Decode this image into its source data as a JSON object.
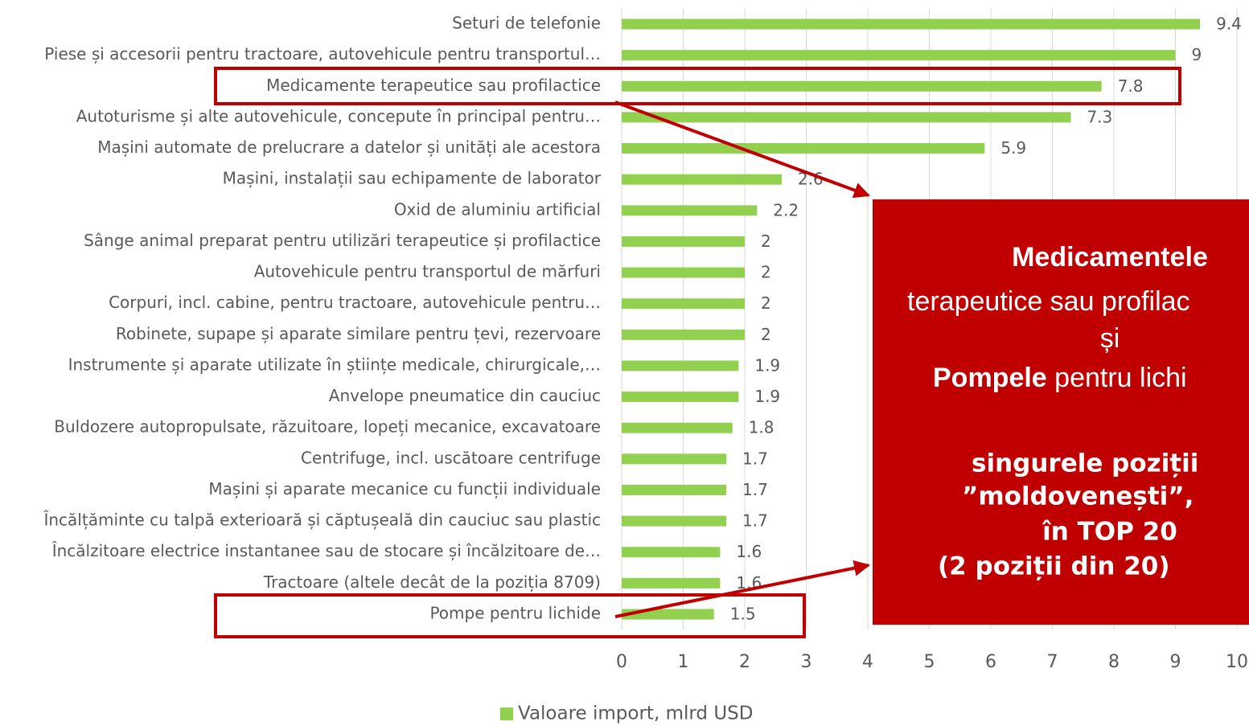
{
  "chart_data": {
    "type": "bar",
    "orientation": "horizontal",
    "categories": [
      "Seturi de telefonie",
      "Piese și accesorii pentru tractoare, autovehicule pentru transportul…",
      "Medicamente terapeutice sau profilactice",
      "Autoturisme și alte autovehicule, concepute în principal pentru…",
      "Mașini automate de prelucrare a datelor și unități ale acestora",
      "Mașini, instalații sau echipamente de laborator",
      "Oxid de aluminiu artificial",
      "Sânge animal preparat pentru utilizări terapeutice și profilactice",
      "Autovehicule pentru transportul de mărfuri",
      "Corpuri, incl. cabine, pentru tractoare, autovehicule pentru…",
      "Robinete, supape și aparate similare pentru țevi, rezervoare",
      "Instrumente și aparate utilizate în științe medicale, chirurgicale,…",
      "Anvelope pneumatice din cauciuc",
      "Buldozere autopropulsate, răzuitoare, lopeți mecanice, excavatoare",
      "Centrifuge, incl. uscătoare centrifuge",
      "Mașini și aparate mecanice cu funcții individuale",
      "Încălțăminte cu talpă exterioară și căptușeală din cauciuc sau plastic",
      "Încălzitoare electrice instantanee sau de stocare și încălzitoare de…",
      "Tractoare (altele decât de la poziția 8709)",
      "Pompe pentru lichide"
    ],
    "series": [
      {
        "name": "Valoare import, mlrd USD",
        "color": "#92d050",
        "values": [
          9.4,
          9,
          7.8,
          7.3,
          5.9,
          2.6,
          2.2,
          2,
          2,
          2,
          2,
          1.9,
          1.9,
          1.8,
          1.7,
          1.7,
          1.7,
          1.6,
          1.6,
          1.5
        ]
      }
    ],
    "xlim": [
      0,
      10
    ],
    "xticks": [
      0,
      1,
      2,
      3,
      4,
      5,
      6,
      7,
      8,
      9,
      10
    ],
    "grid": true,
    "legend": "bottom",
    "annotation": {
      "bold1": "Medicamentele",
      "line2": "terapeutice sau profilac",
      "line3": "și",
      "bold4": "Pompele",
      "line4": " pentru lichi",
      "line5": "singurele poziții",
      "line6": "”moldovenești”,",
      "line7": "în  TOP 20",
      "line8": "(2 poziții din 20)",
      "color": "#c00000"
    }
  }
}
